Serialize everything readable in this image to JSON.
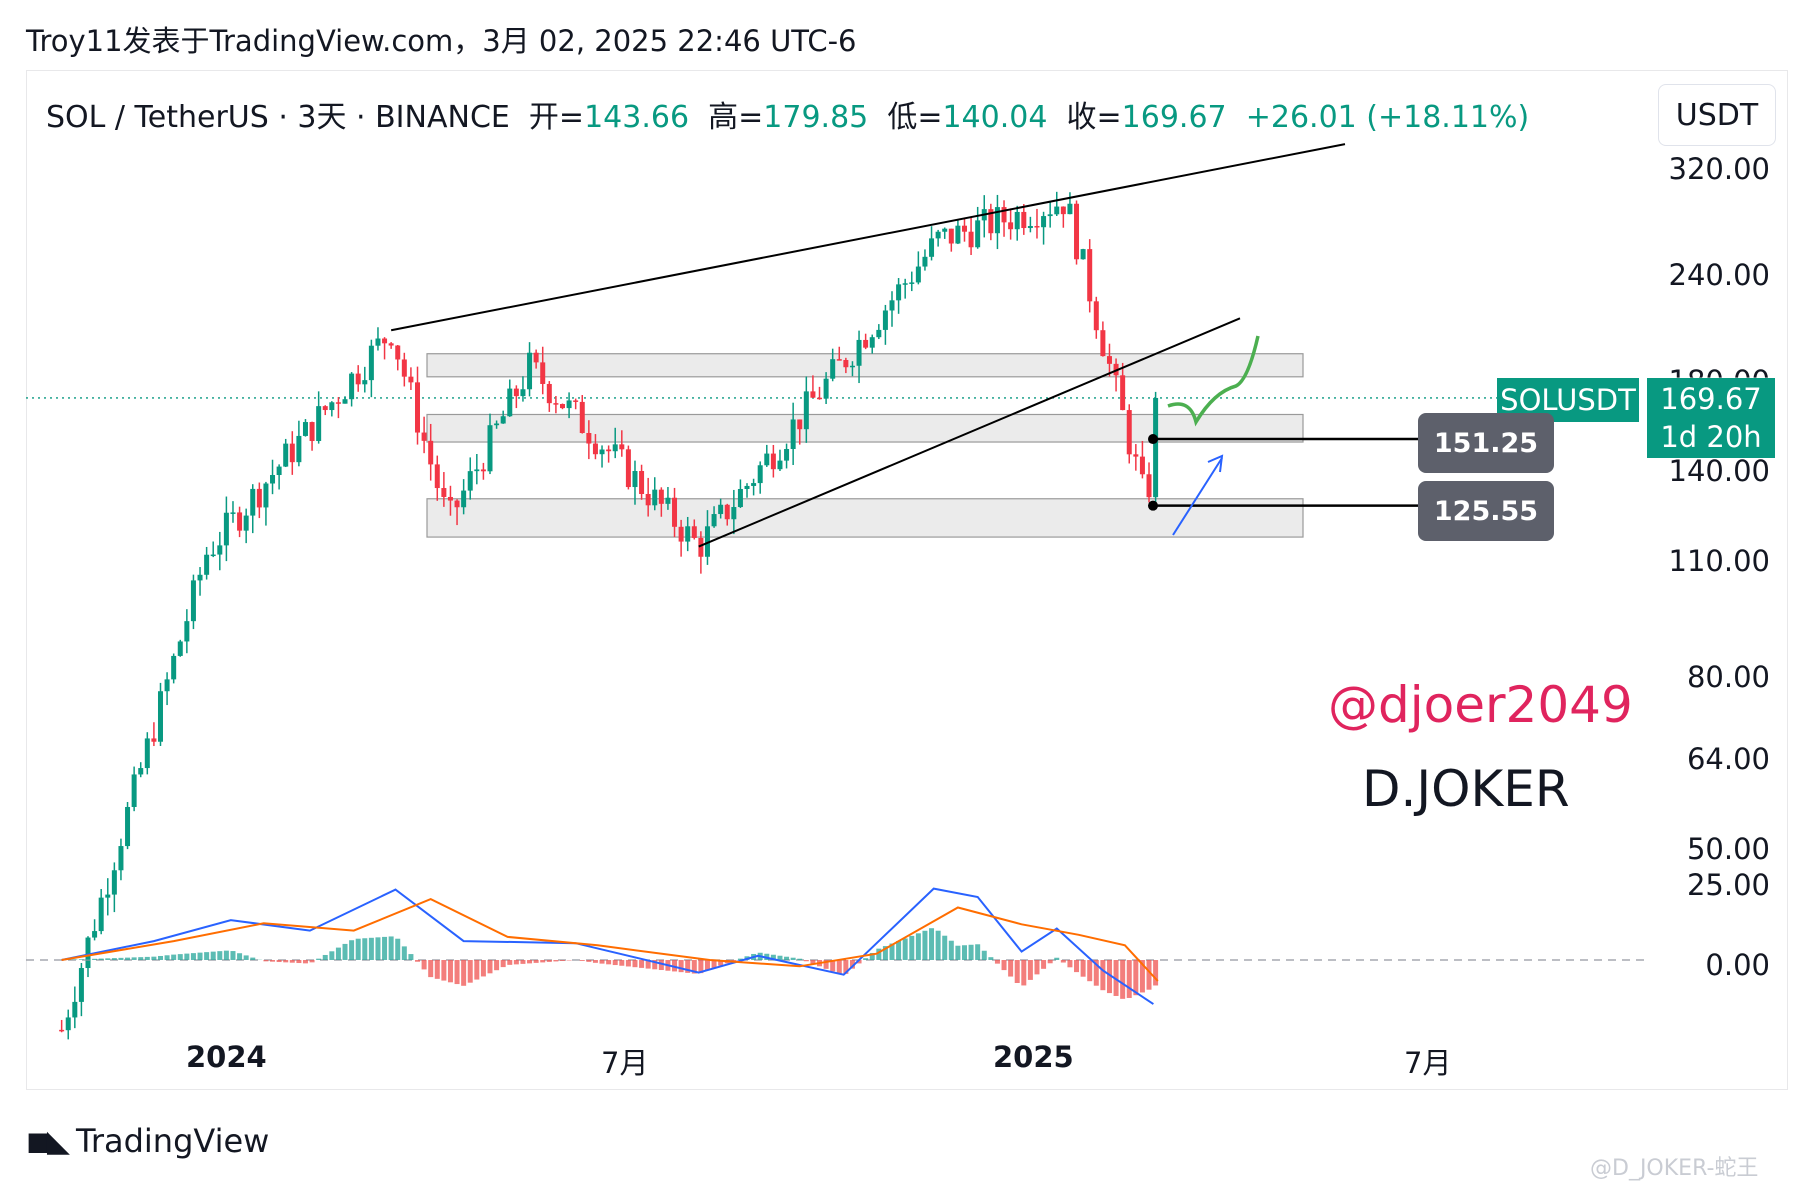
{
  "header": {
    "text": "Troy11发表于TradingView.com，3月 02, 2025 22:46 UTC-6"
  },
  "legend": {
    "symbol": "SOL / TetherUS · 3天 · BINANCE",
    "open_label": "开=",
    "open": "143.66",
    "high_label": "高=",
    "high": "179.85",
    "low_label": "低=",
    "low": "140.04",
    "close_label": "收=",
    "close": "169.67",
    "change": "+26.01 (+18.11%)"
  },
  "currency_button": "USDT",
  "price_tag": {
    "symbol": "SOLUSDT",
    "price": "169.67",
    "countdown": "1d 20h"
  },
  "levels": [
    {
      "label": "151.25"
    },
    {
      "label": "125.55"
    }
  ],
  "annotations": {
    "handle": "@djoer2049",
    "brand": "D.JOKER"
  },
  "footer": {
    "logo_text": "TradingView",
    "watermark": "@D_JOKER-蛇王"
  },
  "colors": {
    "up": "#089981",
    "down": "#f23645",
    "macd": "#2962ff",
    "signal": "#ff6d00",
    "trend": "#000000",
    "green_path": "#4caf50",
    "blue_arrow": "#2962ff",
    "zone": "#dadada"
  },
  "chart_data": {
    "type": "candlestick",
    "interval": "3天",
    "x_ticks": [
      "2024",
      "7月",
      "2025",
      "7月"
    ],
    "y_ticks": [
      "320.00",
      "240.00",
      "180.00",
      "140.00",
      "110.00",
      "80.00",
      "64.00",
      "50.00"
    ],
    "y_scale": "log",
    "macd_ticks": [
      "25.00",
      "0.00"
    ],
    "key_points": [
      {
        "date": "2023-10-20",
        "price": 29
      },
      {
        "date": "2023-12-25",
        "price": 110
      },
      {
        "date": "2024-03-18",
        "price": 205
      },
      {
        "date": "2024-04-13",
        "price": 120
      },
      {
        "date": "2024-05-20",
        "price": 185
      },
      {
        "date": "2024-08-05",
        "price": 112
      },
      {
        "date": "2024-11-22",
        "price": 264
      },
      {
        "date": "2025-01-19",
        "price": 295
      },
      {
        "date": "2025-02-25",
        "price": 125
      },
      {
        "date": "2025-03-02",
        "price": 169.67
      }
    ],
    "horizontal_levels": [
      151.25,
      125.55
    ],
    "zones": [
      {
        "low": 180,
        "high": 192
      },
      {
        "low": 150,
        "high": 162
      },
      {
        "low": 115,
        "high": 128
      }
    ],
    "current_price": 169.67
  }
}
